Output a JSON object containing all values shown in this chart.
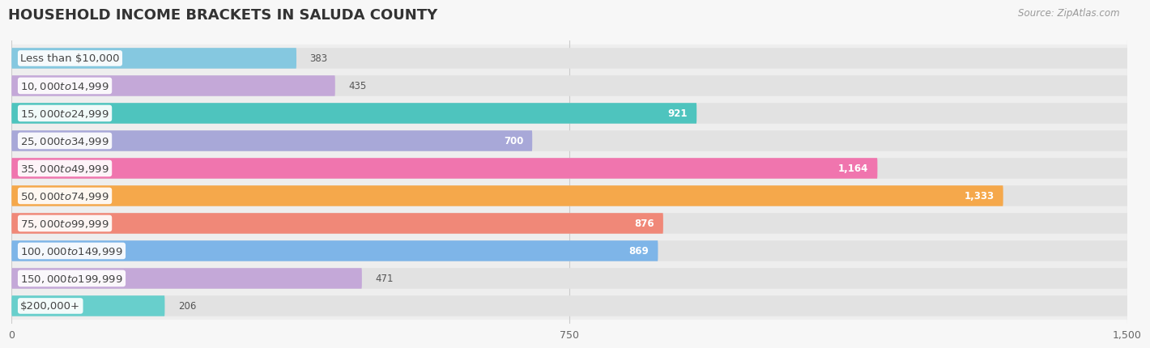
{
  "title": "HOUSEHOLD INCOME BRACKETS IN SALUDA COUNTY",
  "source": "Source: ZipAtlas.com",
  "categories": [
    "Less than $10,000",
    "$10,000 to $14,999",
    "$15,000 to $24,999",
    "$25,000 to $34,999",
    "$35,000 to $49,999",
    "$50,000 to $74,999",
    "$75,000 to $99,999",
    "$100,000 to $149,999",
    "$150,000 to $199,999",
    "$200,000+"
  ],
  "values": [
    383,
    435,
    921,
    700,
    1164,
    1333,
    876,
    869,
    471,
    206
  ],
  "bar_colors": [
    "#85C8E0",
    "#C4A8D8",
    "#4EC4BE",
    "#A8A8D8",
    "#F075AE",
    "#F5A84B",
    "#F08878",
    "#7EB5E8",
    "#C4A8D8",
    "#68CFCC"
  ],
  "xlim": [
    0,
    1500
  ],
  "xticks": [
    0,
    750,
    1500
  ],
  "background_color": "#f7f7f7",
  "bar_bg_color": "#e8e8e8",
  "row_bg_color": "#f0f0f0",
  "title_fontsize": 13,
  "label_fontsize": 9.5,
  "value_fontsize": 8.5,
  "source_fontsize": 8.5,
  "inside_threshold": 600
}
